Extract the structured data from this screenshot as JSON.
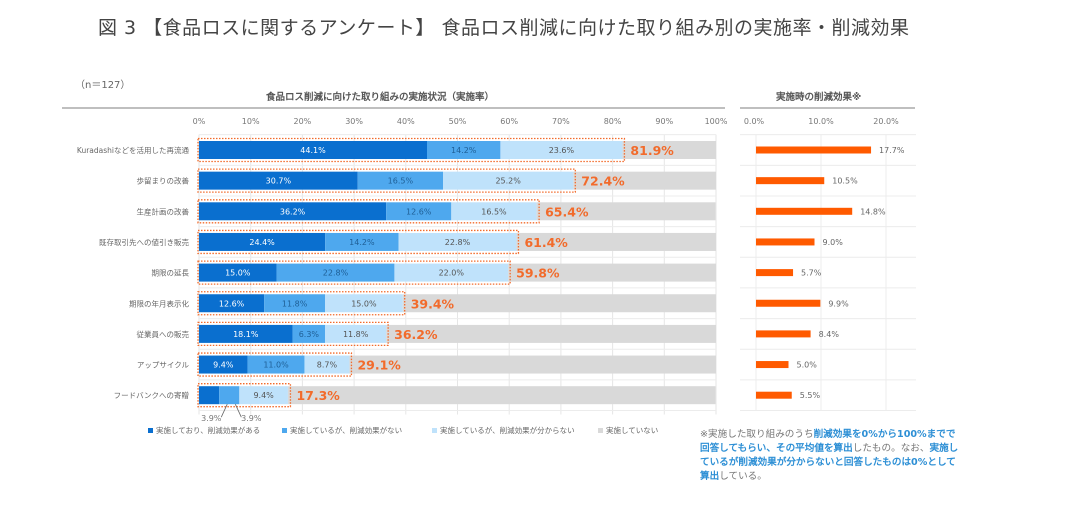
{
  "title": "図 3 【食品ロスに関するアンケート】 食品ロス削減に向けた取り組み別の実施率・削減効果",
  "sample_size": "（n＝127）",
  "colors": {
    "effective": "#0a6fcf",
    "no_effect": "#4ea8ee",
    "unknown": "#bfe2fb",
    "not_implemented": "#d9d9d9",
    "total_outline": "#f26b2b",
    "effect_bar": "#ff5a00"
  },
  "note": {
    "parts": [
      {
        "text": "※実施した取り組みのうち",
        "hl": false
      },
      {
        "text": "削減効果を0%から100%までで回答してもらい、その平均値を算出",
        "hl": true
      },
      {
        "text": "したもの。なお、",
        "hl": false
      },
      {
        "text": "実施しているが削減効果が分からないと回答したものは0%として算出",
        "hl": true
      },
      {
        "text": "している。",
        "hl": false
      }
    ]
  },
  "chart_data": [
    {
      "type": "bar",
      "stacked": true,
      "orientation": "horizontal",
      "title": "食品ロス削減に向けた取り組みの実施状況（実施率）",
      "xlim": [
        0,
        100
      ],
      "xticks": [
        "0%",
        "10%",
        "20%",
        "30%",
        "40%",
        "50%",
        "60%",
        "70%",
        "80%",
        "90%",
        "100%"
      ],
      "grid": true,
      "legend_position": "bottom",
      "categories": [
        "Kuradashiなどを活用した再流通",
        "歩留まりの改善",
        "生産計画の改善",
        "既存取引先への値引き販売",
        "期限の延長",
        "期限の年月表示化",
        "従業員への販売",
        "アップサイクル",
        "フードバンクへの寄贈"
      ],
      "series": [
        {
          "name": "実施しており、削減効果がある",
          "color_key": "effective",
          "values": [
            44.1,
            30.7,
            36.2,
            24.4,
            15.0,
            12.6,
            18.1,
            9.4,
            3.9
          ]
        },
        {
          "name": "実施しているが、削減効果がない",
          "color_key": "no_effect",
          "values": [
            14.2,
            16.5,
            12.6,
            14.2,
            22.8,
            11.8,
            6.3,
            11.0,
            3.9
          ]
        },
        {
          "name": "実施しているが、削減効果が分からない",
          "color_key": "unknown",
          "values": [
            23.6,
            25.2,
            16.5,
            22.8,
            22.0,
            15.0,
            11.8,
            8.7,
            9.4
          ]
        },
        {
          "name": "実施していない",
          "color_key": "not_implemented",
          "values": [
            18.1,
            27.6,
            34.6,
            38.6,
            40.2,
            60.6,
            63.8,
            70.9,
            82.7
          ]
        }
      ],
      "segment_labels": [
        [
          "44.1%",
          "14.2%",
          "23.6%"
        ],
        [
          "30.7%",
          "16.5%",
          "25.2%"
        ],
        [
          "36.2%",
          "12.6%",
          "16.5%"
        ],
        [
          "24.4%",
          "14.2%",
          "22.8%"
        ],
        [
          "15.0%",
          "22.8%",
          "22.0%"
        ],
        [
          "12.6%",
          "11.8%",
          "15.0%"
        ],
        [
          "18.1%",
          "6.3%",
          "11.8%"
        ],
        [
          "9.4%",
          "11.0%",
          "8.7%"
        ],
        [
          "",
          "",
          "9.4%"
        ]
      ],
      "totals": [
        81.9,
        72.4,
        65.4,
        61.4,
        59.8,
        39.4,
        36.2,
        29.1,
        17.3
      ],
      "total_labels": [
        "81.9%",
        "72.4%",
        "65.4%",
        "61.4%",
        "59.8%",
        "39.4%",
        "36.2%",
        "29.1%",
        "17.3%"
      ],
      "callouts": [
        "3.9%",
        "3.9%"
      ]
    },
    {
      "type": "bar",
      "orientation": "horizontal",
      "title": "実施時の削減効果※",
      "xlim": [
        0,
        20
      ],
      "xticks": [
        "0.0%",
        "10.0%",
        "20.0%"
      ],
      "grid": true,
      "categories": [
        "Kuradashiなどを活用した再流通",
        "歩留まりの改善",
        "生産計画の改善",
        "既存取引先への値引き販売",
        "期限の延長",
        "期限の年月表示化",
        "従業員への販売",
        "アップサイクル",
        "フードバンクへの寄贈"
      ],
      "values": [
        17.7,
        10.5,
        14.8,
        9.0,
        5.7,
        9.9,
        8.4,
        5.0,
        5.5
      ],
      "value_labels": [
        "17.7%",
        "10.5%",
        "14.8%",
        "9.0%",
        "5.7%",
        "9.9%",
        "8.4%",
        "5.0%",
        "5.5%"
      ]
    }
  ]
}
